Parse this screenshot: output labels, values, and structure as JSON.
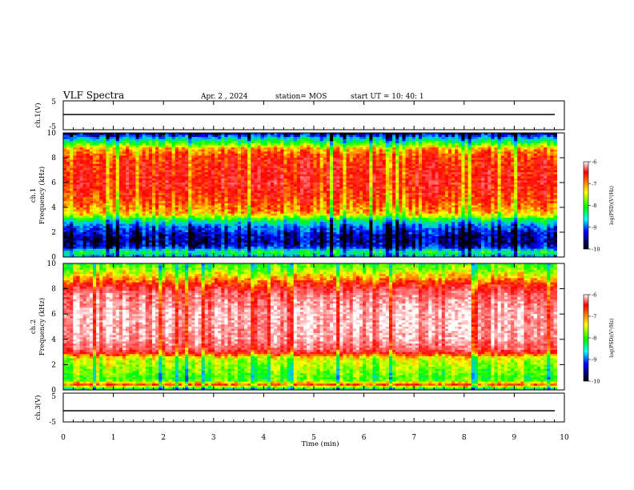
{
  "header": {
    "title": "VLF Spectra",
    "date": "Apr. 2 , 2024",
    "station": "station= MOS",
    "start": "start UT = 10: 40: 1"
  },
  "colorbar": {
    "label": "log(PSD)(V²/Hz)",
    "ticks": [
      "-6",
      "-7",
      "-8",
      "-9",
      "-10"
    ],
    "stops": [
      "#ffffff",
      "#ff0000",
      "#ffff00",
      "#00ff00",
      "#00ffff",
      "#0000ff",
      "#000000"
    ]
  },
  "chart_data": [
    {
      "type": "line",
      "name": "ch1_waveform",
      "ylabel": "ch.1(V)",
      "ylim": [
        -5,
        5
      ],
      "y_ticks": [
        "5",
        "-5"
      ],
      "x": [
        0,
        10
      ],
      "values": [
        0,
        0
      ]
    },
    {
      "type": "heatmap",
      "name": "ch1_spectrogram",
      "ylabel": "ch.1\nFrequency (kHz)",
      "ylim": [
        0,
        10
      ],
      "xlim": [
        0,
        10
      ],
      "y_ticks": [
        "0",
        "2",
        "4",
        "6",
        "8",
        "10"
      ],
      "data_end_min": 9.85,
      "bands_khz_logpsd": [
        [
          0,
          -9.2
        ],
        [
          0.4,
          -8.6
        ],
        [
          0.8,
          -9.6
        ],
        [
          1.2,
          -9.8
        ],
        [
          1.8,
          -9.7
        ],
        [
          2.5,
          -9.3
        ],
        [
          3.0,
          -8.6
        ],
        [
          3.5,
          -7.6
        ],
        [
          4.3,
          -7.3
        ],
        [
          5.0,
          -7.1
        ],
        [
          6.0,
          -6.9
        ],
        [
          8.0,
          -7.1
        ],
        [
          8.7,
          -7.5
        ],
        [
          9.3,
          -8.6
        ],
        [
          9.8,
          -9.5
        ],
        [
          10,
          -9.9
        ]
      ]
    },
    {
      "type": "heatmap",
      "name": "ch2_spectrogram",
      "ylabel": "ch.2\nFrequency (kHz)",
      "ylim": [
        0,
        10
      ],
      "xlim": [
        0,
        10
      ],
      "y_ticks": [
        "0",
        "2",
        "4",
        "6",
        "8",
        "10"
      ],
      "data_end_min": 9.85,
      "bands_khz_logpsd": [
        [
          0,
          -9.0
        ],
        [
          0.4,
          -7.2
        ],
        [
          0.8,
          -8.4
        ],
        [
          1.5,
          -8.2
        ],
        [
          2.5,
          -7.9
        ],
        [
          2.9,
          -7.0
        ],
        [
          3.2,
          -6.6
        ],
        [
          4.0,
          -6.3
        ],
        [
          6.0,
          -6.2
        ],
        [
          7.6,
          -6.5
        ],
        [
          8.2,
          -6.9
        ],
        [
          9.0,
          -7.7
        ],
        [
          9.6,
          -8.2
        ],
        [
          10,
          -8.4
        ]
      ]
    },
    {
      "type": "line",
      "name": "ch3_waveform",
      "ylabel": "ch.3(V)",
      "ylim": [
        -5,
        5
      ],
      "y_ticks": [
        "5",
        "-5"
      ],
      "x": [
        0,
        10
      ],
      "values": [
        0,
        0
      ]
    }
  ],
  "x_axis": {
    "label": "Time (min)",
    "ticks": [
      "0",
      "1",
      "2",
      "3",
      "4",
      "5",
      "6",
      "7",
      "8",
      "9",
      "10"
    ]
  }
}
